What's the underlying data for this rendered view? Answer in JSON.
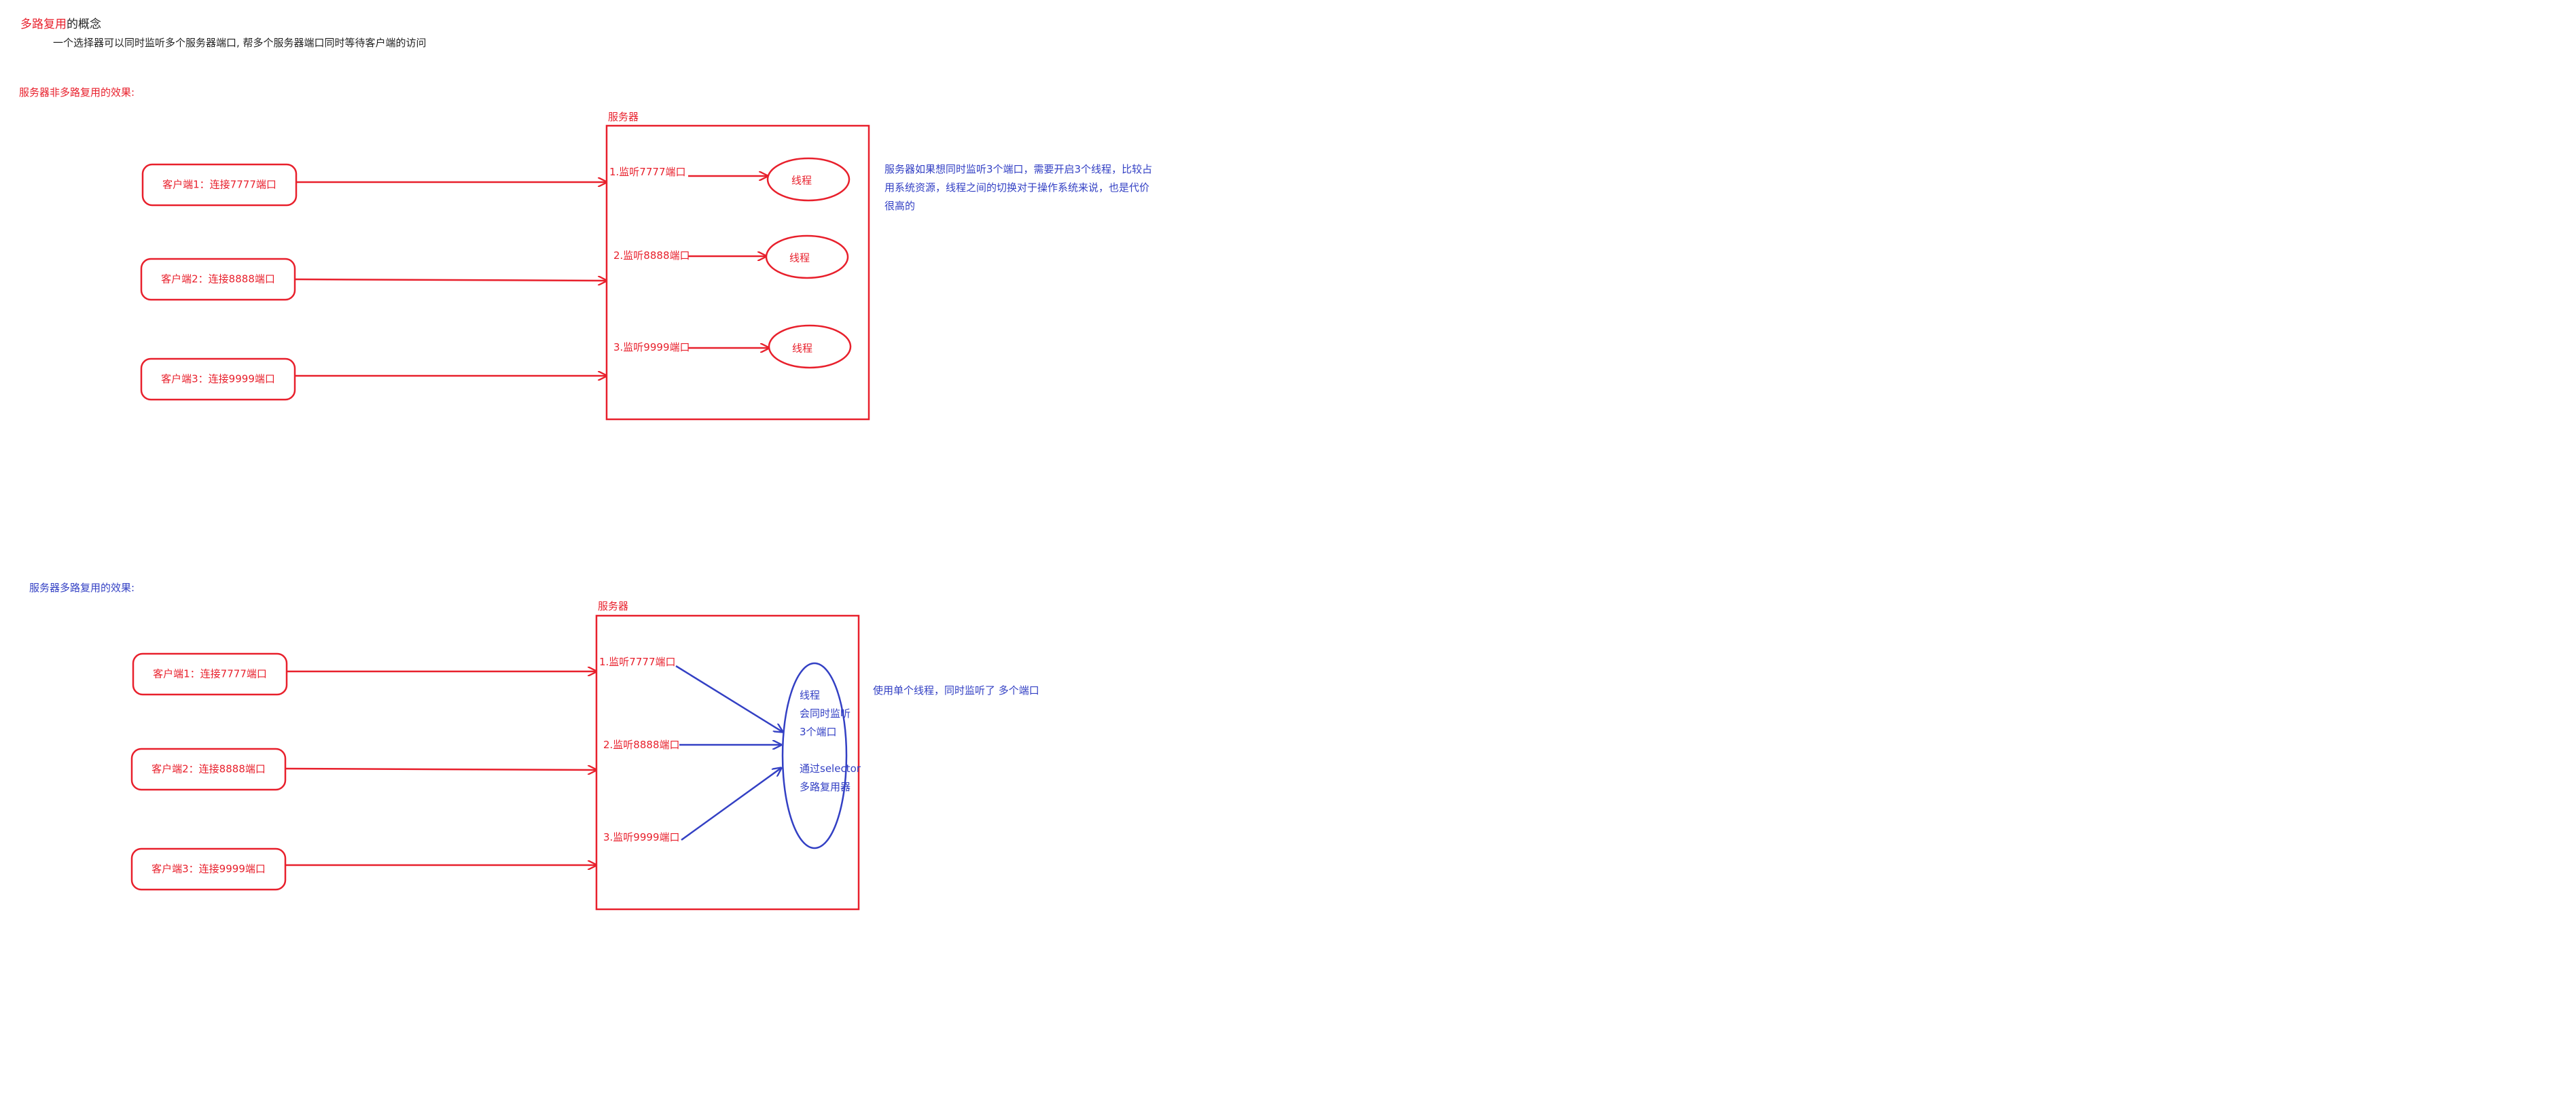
{
  "colors": {
    "red": "#e8202c",
    "blue": "#3340c4",
    "dark": "#222222",
    "background": "#ffffff"
  },
  "heading": {
    "keyword": "多路复用",
    "suffix": "的概念",
    "description": "一个选择器可以同时监听多个服务器端口, 帮多个服务器端口同时等待客户端的访问"
  },
  "section_non_multiplex": {
    "title": "服务器非多路复用的效果:",
    "server_label": "服务器",
    "clients": [
      {
        "label": "客户端1：连接7777端口"
      },
      {
        "label": "客户端2：连接8888端口"
      },
      {
        "label": "客户端3：连接9999端口"
      }
    ],
    "listeners": [
      {
        "label": "1.监听7777端口"
      },
      {
        "label": "2.监听8888端口"
      },
      {
        "label": "3.监听9999端口"
      }
    ],
    "threads": [
      {
        "label": "线程"
      },
      {
        "label": "线程"
      },
      {
        "label": "线程"
      }
    ],
    "note_lines": [
      "服务器如果想同时监听3个端口，需要开启3个线程，比较占",
      "用系统资源，线程之间的切换对于操作系统来说，也是代价",
      "很高的"
    ]
  },
  "section_multiplex": {
    "title": "服务器多路复用的效果:",
    "server_label": "服务器",
    "clients": [
      {
        "label": "客户端1：连接7777端口"
      },
      {
        "label": "客户端2：连接8888端口"
      },
      {
        "label": "客户端3：连接9999端口"
      }
    ],
    "listeners": [
      {
        "label": "1.监听7777端口"
      },
      {
        "label": "2.监听8888端口"
      },
      {
        "label": "3.监听9999端口"
      }
    ],
    "thread_lines": [
      "线程",
      "会同时监听",
      "3个端口",
      "",
      "通过selector",
      "多路复用器"
    ],
    "note": "使用单个线程，同时监听了 多个端口"
  }
}
